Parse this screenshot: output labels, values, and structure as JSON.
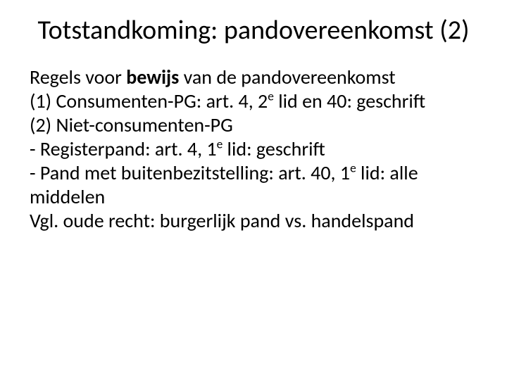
{
  "title": "Totstandkoming: pandovereenkomst (2)",
  "body": {
    "line1_pre": "Regels voor ",
    "line1_bold": "bewijs",
    "line1_post": " van de pandovereenkomst",
    "line2_a": "(1) Consumenten-PG: art. 4, 2",
    "line2_sup": "e",
    "line2_b": " lid en 40: geschrift",
    "line3": "(2) Niet-consumenten-PG",
    "line4_a": "- Registerpand: art. 4, 1",
    "line4_sup": "e",
    "line4_b": " lid: geschrift",
    "line5_a": "- Pand met buitenbezitstelling: art. 40, 1",
    "line5_sup": "e",
    "line5_b": " lid: alle middelen",
    "line6": "Vgl. oude recht: burgerlijk pand vs. handelspand"
  },
  "colors": {
    "background": "#ffffff",
    "text": "#000000"
  },
  "typography": {
    "title_fontsize_pt": 28,
    "body_fontsize_pt": 21,
    "font_family": "Calibri"
  }
}
